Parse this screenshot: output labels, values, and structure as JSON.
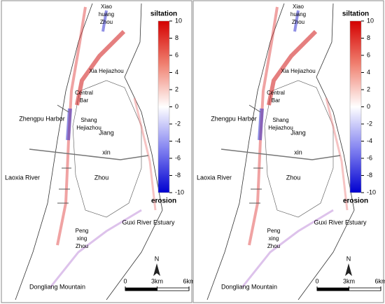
{
  "panels": [
    {
      "places": [
        [
          "Xiao",
          "huang",
          "Zhou"
        ],
        [
          "Xia Hejiazhou"
        ],
        [
          "Central",
          "Bar"
        ],
        [
          "Zhengpu Harbor"
        ],
        [
          "Shang",
          "Hejiazhou"
        ],
        [
          "Jiang"
        ],
        [
          "xin"
        ],
        [
          "Laoxia River"
        ],
        [
          "Zhou"
        ],
        [
          "Guxi River Estuary"
        ],
        [
          "Peng",
          "xing",
          "Zhou"
        ],
        [
          "Dongliang Mountain"
        ]
      ],
      "colorbar": {
        "title_top": "siltation",
        "title_bottom": "erosion",
        "range": [
          -10,
          10
        ],
        "ticks": [
          10,
          8,
          6,
          4,
          2,
          0,
          -2,
          -4,
          -6,
          -8,
          -10
        ]
      },
      "north": "N",
      "scalebar": {
        "ticks": [
          {
            "value": 0,
            "label": "0"
          },
          {
            "value": 3,
            "label": "3km"
          },
          {
            "value": 6,
            "label": "6km"
          }
        ]
      }
    },
    {
      "places": [
        [
          "Xiao",
          "huang",
          "Zhou"
        ],
        [
          "Xia Hejiazhou"
        ],
        [
          "Central",
          "Bar"
        ],
        [
          "Zhengpu Harbor"
        ],
        [
          "Shang",
          "Hejiazhou"
        ],
        [
          "Jiang"
        ],
        [
          "xin"
        ],
        [
          "Laoxia River"
        ],
        [
          "Zhou"
        ],
        [
          "Guxi River Estuary"
        ],
        [
          "Peng",
          "xing",
          "Zhou"
        ],
        [
          "Dongliang Mountain"
        ]
      ],
      "colorbar": {
        "title_top": "siltation",
        "title_bottom": "erosion",
        "range": [
          -10,
          10
        ],
        "ticks": [
          10,
          8,
          6,
          4,
          2,
          0,
          -2,
          -4,
          -6,
          -8,
          -10
        ]
      },
      "north": "N",
      "scalebar": {
        "ticks": [
          {
            "value": 0,
            "label": "0"
          },
          {
            "value": 3,
            "label": "3km"
          },
          {
            "value": 6,
            "label": "6km"
          }
        ]
      }
    }
  ]
}
